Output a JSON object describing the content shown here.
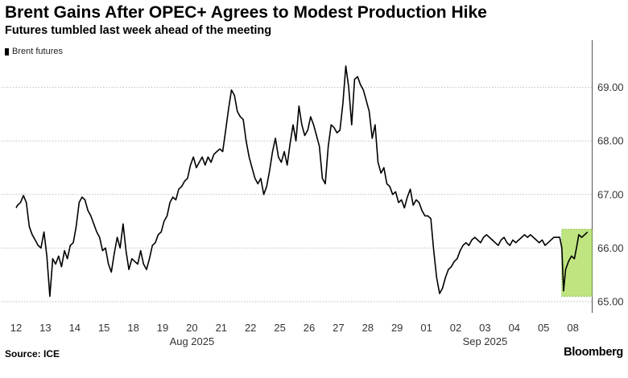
{
  "header": {
    "title": "Brent Gains After OPEC+ Agrees to Modest Production Hike",
    "subtitle": "Futures tumbled last week ahead of the meeting"
  },
  "footer": {
    "source": "Source: ICE",
    "brand": "Bloomberg"
  },
  "colors": {
    "line": "#000000",
    "grid": "#bdbdbd",
    "highlight_fill": "#b5e06a",
    "highlight_stroke": "#7cc43c"
  },
  "chart_data": {
    "type": "line",
    "title": "Brent Gains After OPEC+ Agrees to Modest Production Hike",
    "subtitle": "Futures tumbled last week ahead of the meeting",
    "legend": [
      "Brent futures"
    ],
    "legend_position": "top-left",
    "y_axis_side": "right",
    "ylim": [
      64.85,
      69.85
    ],
    "y_ticks": [
      65.0,
      66.0,
      67.0,
      68.0,
      69.0
    ],
    "y_tick_labels": [
      "65.00",
      "66.00",
      "67.00",
      "68.00",
      "69.00"
    ],
    "grid": "horizontal dotted",
    "x_tick_labels": [
      "12",
      "13",
      "14",
      "15",
      "18",
      "19",
      "20",
      "21",
      "22",
      "25",
      "26",
      "27",
      "28",
      "29",
      "01",
      "02",
      "03",
      "04",
      "05",
      "08"
    ],
    "x_month_labels": [
      {
        "label": "Aug 2025",
        "under": "20"
      },
      {
        "label": "Sep 2025",
        "under": "03"
      }
    ],
    "highlight": {
      "from_session": 18.62,
      "to_session": 19.65,
      "y_range": [
        65.1,
        66.35
      ]
    },
    "series": [
      {
        "name": "Brent futures",
        "x": [
          0,
          0.05,
          0.15,
          0.25,
          0.35,
          0.45,
          0.55,
          0.65,
          0.75,
          0.85,
          0.95,
          1.05,
          1.15,
          1.25,
          1.35,
          1.45,
          1.55,
          1.65,
          1.75,
          1.85,
          1.95,
          2.05,
          2.15,
          2.25,
          2.35,
          2.45,
          2.55,
          2.65,
          2.75,
          2.85,
          2.95,
          3.05,
          3.15,
          3.25,
          3.35,
          3.45,
          3.55,
          3.65,
          3.75,
          3.85,
          3.95,
          4.05,
          4.15,
          4.25,
          4.35,
          4.45,
          4.55,
          4.65,
          4.75,
          4.85,
          4.95,
          5.05,
          5.15,
          5.25,
          5.35,
          5.45,
          5.55,
          5.65,
          5.75,
          5.85,
          5.95,
          6.05,
          6.15,
          6.25,
          6.35,
          6.45,
          6.55,
          6.65,
          6.75,
          6.85,
          6.95,
          7.05,
          7.15,
          7.25,
          7.35,
          7.45,
          7.55,
          7.65,
          7.75,
          7.85,
          7.95,
          8.05,
          8.15,
          8.25,
          8.35,
          8.45,
          8.55,
          8.65,
          8.75,
          8.85,
          8.95,
          9.05,
          9.15,
          9.25,
          9.35,
          9.45,
          9.55,
          9.65,
          9.75,
          9.85,
          9.95,
          10.05,
          10.15,
          10.25,
          10.35,
          10.45,
          10.55,
          10.65,
          10.75,
          10.85,
          10.95,
          11.05,
          11.15,
          11.25,
          11.35,
          11.45,
          11.55,
          11.65,
          11.75,
          11.85,
          11.95,
          12.05,
          12.15,
          12.25,
          12.35,
          12.45,
          12.55,
          12.65,
          12.75,
          12.85,
          12.95,
          13.05,
          13.15,
          13.25,
          13.35,
          13.45,
          13.55,
          13.65,
          13.75,
          13.85,
          13.95,
          14.05,
          14.15,
          14.25,
          14.35,
          14.45,
          14.55,
          14.65,
          14.75,
          14.85,
          14.95,
          15.05,
          15.15,
          15.25,
          15.35,
          15.45,
          15.55,
          15.65,
          15.75,
          15.85,
          15.95,
          16.05,
          16.15,
          16.25,
          16.35,
          16.45,
          16.55,
          16.65,
          16.75,
          16.85,
          16.95,
          17.05,
          17.15,
          17.25,
          17.35,
          17.45,
          17.55,
          17.65,
          17.75,
          17.85,
          17.95,
          18.05,
          18.15,
          18.25,
          18.35,
          18.45,
          18.55,
          18.62,
          18.68,
          18.75,
          18.85,
          18.95,
          19.05,
          19.12,
          19.2,
          19.3,
          19.4,
          19.5
        ],
        "values": [
          66.75,
          66.8,
          66.85,
          66.98,
          66.85,
          66.4,
          66.25,
          66.15,
          66.05,
          66.0,
          66.3,
          65.85,
          65.1,
          65.8,
          65.7,
          65.85,
          65.65,
          65.95,
          65.8,
          66.05,
          66.1,
          66.4,
          66.85,
          66.95,
          66.9,
          66.7,
          66.6,
          66.45,
          66.3,
          66.2,
          65.95,
          66.0,
          65.7,
          65.55,
          65.9,
          66.2,
          66.0,
          66.45,
          65.95,
          65.6,
          65.8,
          65.75,
          65.7,
          65.95,
          65.7,
          65.6,
          65.8,
          66.05,
          66.1,
          66.25,
          66.3,
          66.5,
          66.6,
          66.85,
          66.95,
          66.9,
          67.1,
          67.15,
          67.25,
          67.3,
          67.55,
          67.7,
          67.5,
          67.6,
          67.7,
          67.55,
          67.7,
          67.6,
          67.75,
          67.8,
          67.85,
          67.8,
          68.2,
          68.6,
          68.95,
          68.85,
          68.55,
          68.45,
          68.4,
          68.0,
          67.7,
          67.5,
          67.3,
          67.2,
          67.3,
          67.0,
          67.15,
          67.45,
          67.8,
          68.05,
          67.7,
          67.6,
          67.8,
          67.55,
          67.95,
          68.3,
          68.0,
          68.65,
          68.3,
          68.1,
          68.2,
          68.45,
          68.3,
          68.1,
          67.9,
          67.3,
          67.2,
          67.9,
          68.3,
          68.25,
          68.15,
          68.2,
          68.7,
          69.4,
          69.0,
          68.3,
          69.15,
          69.2,
          69.05,
          68.95,
          68.75,
          68.55,
          68.05,
          68.3,
          67.6,
          67.4,
          67.5,
          67.2,
          67.15,
          67.0,
          67.05,
          66.85,
          66.9,
          66.75,
          66.95,
          67.1,
          66.8,
          66.9,
          66.85,
          66.7,
          66.6,
          66.6,
          66.55,
          65.95,
          65.45,
          65.15,
          65.25,
          65.45,
          65.6,
          65.65,
          65.75,
          65.8,
          65.95,
          66.05,
          66.1,
          66.05,
          66.15,
          66.2,
          66.15,
          66.1,
          66.2,
          66.25,
          66.2,
          66.15,
          66.1,
          66.05,
          66.15,
          66.2,
          66.1,
          66.05,
          66.15,
          66.1,
          66.15,
          66.2,
          66.25,
          66.2,
          66.25,
          66.2,
          66.15,
          66.1,
          66.15,
          66.05,
          66.1,
          66.15,
          66.2,
          66.2,
          66.2,
          66.0,
          65.2,
          65.6,
          65.75,
          65.85,
          65.8,
          66.0,
          66.25,
          66.2,
          66.25,
          66.3
        ]
      }
    ]
  }
}
